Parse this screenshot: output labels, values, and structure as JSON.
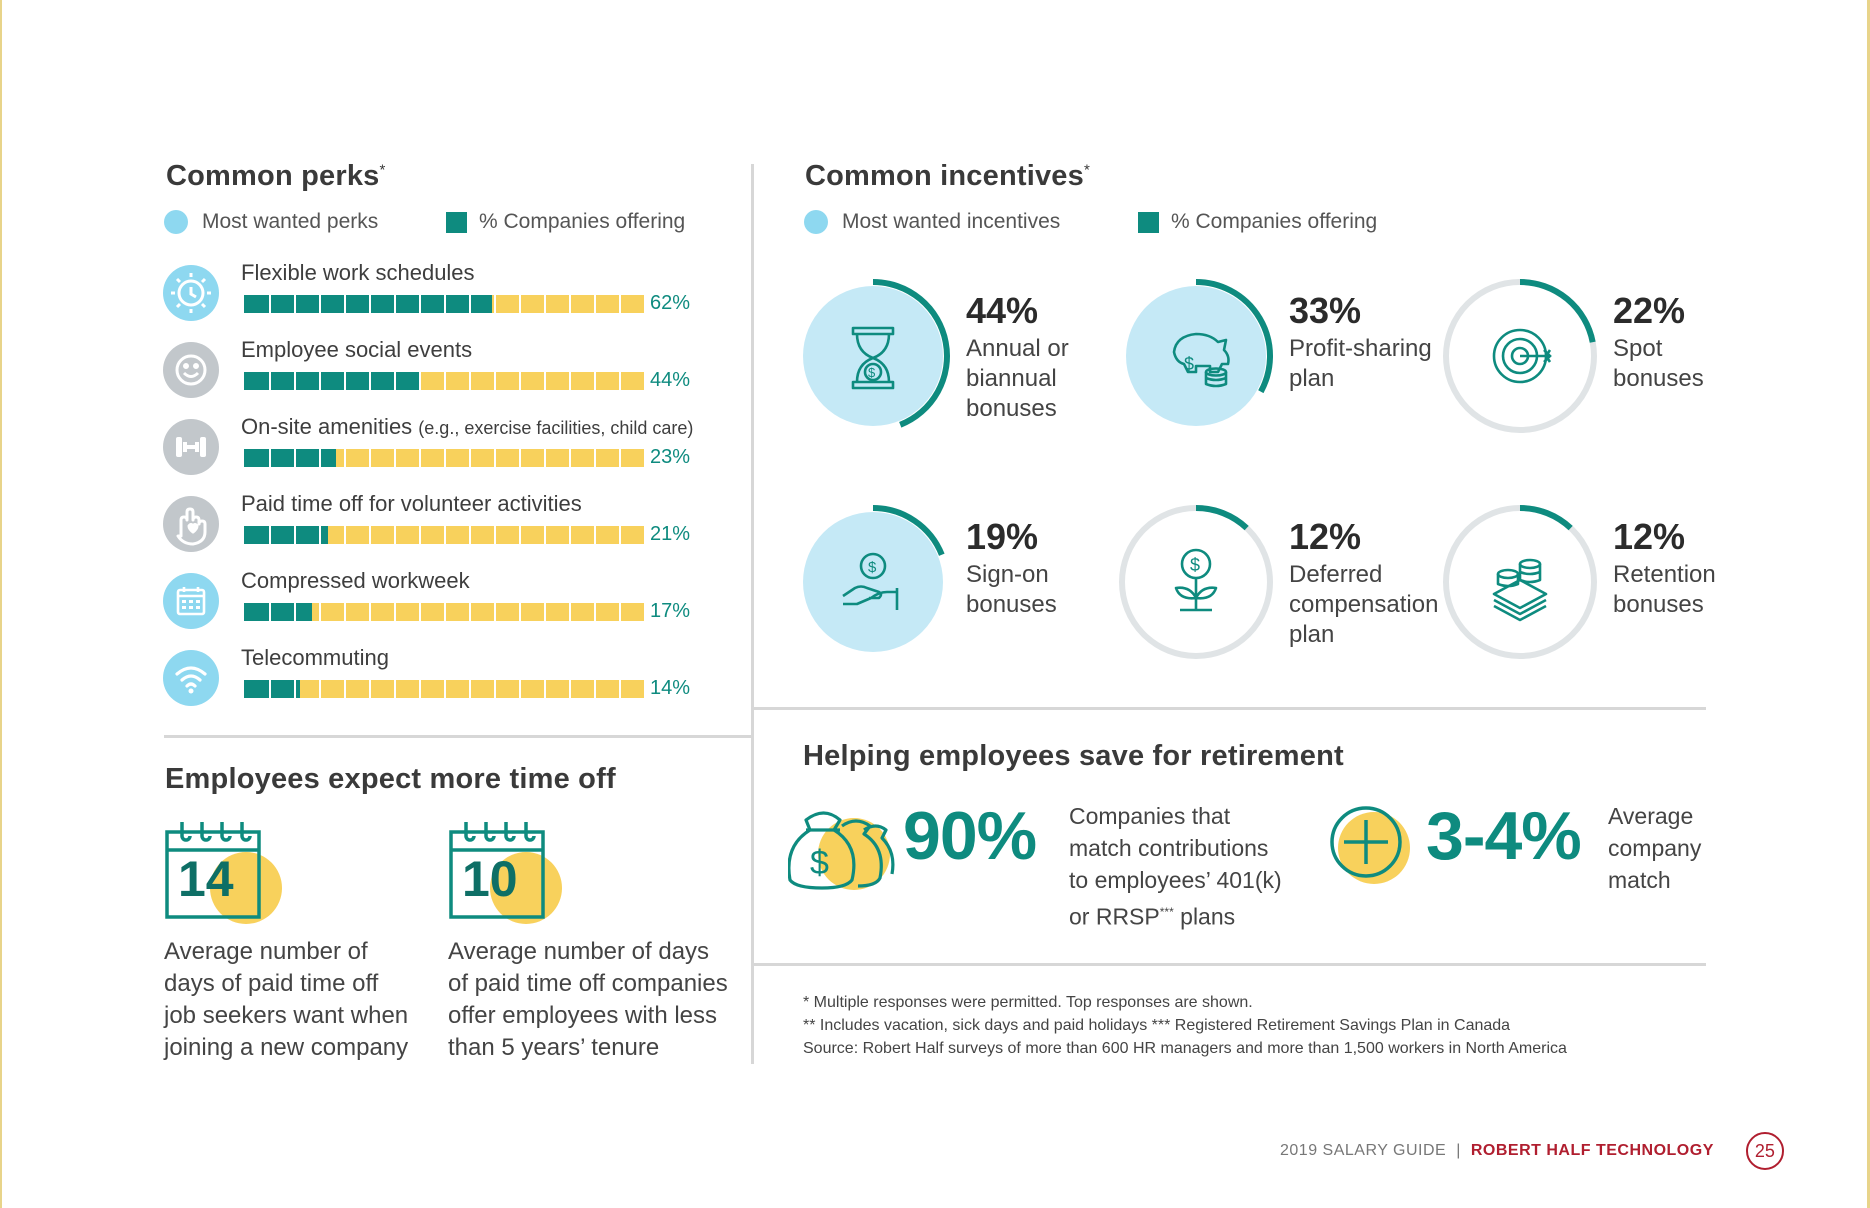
{
  "perks": {
    "title": "Common perks",
    "title_mark": "*",
    "legend_wanted": "Most wanted perks",
    "legend_offering": "% Companies offering",
    "items": [
      {
        "label": "Flexible work schedules",
        "sub": "",
        "pct_label": "62%",
        "icon": "gear-clock-icon",
        "wanted": true
      },
      {
        "label": "Employee social events",
        "sub": "",
        "pct_label": "44%",
        "icon": "smiley-icon",
        "wanted": false
      },
      {
        "label": "On-site amenities ",
        "sub": "(e.g., exercise facilities, child care)",
        "pct_label": "23%",
        "icon": "dumbbell-icon",
        "wanted": false
      },
      {
        "label": "Paid time off for volunteer activities",
        "sub": "",
        "pct_label": "21%",
        "icon": "hand-heart-icon",
        "wanted": false
      },
      {
        "label": "Compressed workweek",
        "sub": "",
        "pct_label": "17%",
        "icon": "calendar-icon",
        "wanted": true
      },
      {
        "label": "Telecommuting",
        "sub": "",
        "pct_label": "14%",
        "icon": "wifi-icon",
        "wanted": true
      }
    ]
  },
  "incentives": {
    "title": "Common incentives",
    "title_mark": "*",
    "legend_wanted": "Most wanted incentives",
    "legend_offering": "% Companies offering",
    "items": [
      {
        "pct_label": "44%",
        "lines": [
          "Annual or",
          "biannual",
          "bonuses"
        ],
        "icon": "hourglass-dollar-icon",
        "wanted": true
      },
      {
        "pct_label": "33%",
        "lines": [
          "Profit-sharing",
          "plan"
        ],
        "icon": "piggy-bank-icon",
        "wanted": true
      },
      {
        "pct_label": "22%",
        "lines": [
          "Spot",
          "bonuses"
        ],
        "icon": "target-icon",
        "wanted": false
      },
      {
        "pct_label": "19%",
        "lines": [
          "Sign-on",
          "bonuses"
        ],
        "icon": "hand-coin-icon",
        "wanted": true
      },
      {
        "pct_label": "12%",
        "lines": [
          "Deferred",
          "compensation",
          "plan"
        ],
        "icon": "money-plant-icon",
        "wanted": false
      },
      {
        "pct_label": "12%",
        "lines": [
          "Retention",
          "bonuses"
        ],
        "icon": "cash-stack-icon",
        "wanted": false
      }
    ]
  },
  "timeoff": {
    "title": "Employees expect more time off",
    "items": [
      {
        "number": "14",
        "lines": [
          "Average number of",
          "days of paid time off",
          "job seekers want when",
          "joining a new company"
        ]
      },
      {
        "number": "10",
        "lines": [
          "Average number of days",
          "of paid time off companies",
          "offer employees with less",
          "than 5 years’ tenure"
        ]
      }
    ]
  },
  "retirement": {
    "title": "Helping employees save for retirement",
    "stat1_value": "90%",
    "stat1_lines": [
      "Companies that",
      "match contributions",
      "to employees’ 401(k)",
      "or RRSP*** plans"
    ],
    "stat2_value": "3-4%",
    "stat2_lines": [
      "Average",
      "company",
      "match"
    ]
  },
  "notes": [
    "* Multiple responses were permitted. Top responses are shown.",
    "** Includes vacation, sick days and paid holidays  *** Registered Retirement Savings Plan in Canada",
    "Source: Robert Half surveys of more than 600 HR managers and more than 1,500 workers in North America"
  ],
  "footer": {
    "guide": "2019 SALARY GUIDE",
    "separator": "|",
    "brand": "ROBERT HALF TECHNOLOGY",
    "page": "25"
  },
  "colors": {
    "teal": "#0e8b7f",
    "yellow": "#f8d15c",
    "light_blue": "#8ed8f0",
    "gray_icon": "#c2c7cb",
    "brand_red": "#b01e2f"
  },
  "chart_data": [
    {
      "type": "bar",
      "title": "Common perks*",
      "categories": [
        "Flexible work schedules",
        "Employee social events",
        "On-site amenities (e.g., exercise facilities, child care)",
        "Paid time off for volunteer activities",
        "Compressed workweek",
        "Telecommuting"
      ],
      "series": [
        {
          "name": "% Companies offering",
          "values": [
            62,
            44,
            23,
            21,
            17,
            14
          ]
        }
      ],
      "most_wanted": [
        "Flexible work schedules",
        "Compressed workweek",
        "Telecommuting"
      ],
      "ylim": [
        0,
        100
      ]
    },
    {
      "type": "pie",
      "title": "Common incentives*",
      "categories": [
        "Annual or biannual bonuses",
        "Profit-sharing plan",
        "Spot bonuses",
        "Sign-on bonuses",
        "Deferred compensation plan",
        "Retention bonuses"
      ],
      "series": [
        {
          "name": "% Companies offering",
          "values": [
            44,
            33,
            22,
            19,
            12,
            12
          ]
        }
      ],
      "most_wanted": [
        "Annual or biannual bonuses",
        "Profit-sharing plan",
        "Sign-on bonuses"
      ]
    }
  ]
}
